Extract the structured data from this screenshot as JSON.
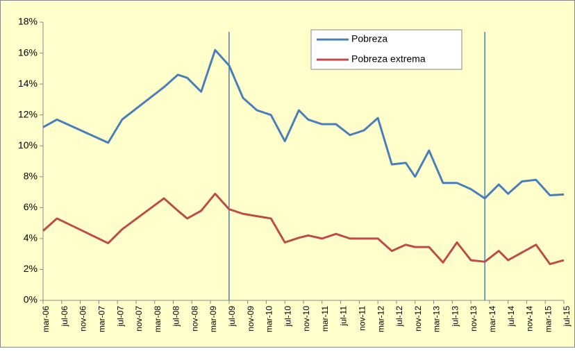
{
  "chart_data": {
    "type": "line",
    "x": [
      "2006-03",
      "2006-06",
      "2007-05",
      "2007-08",
      "2008-05",
      "2008-08",
      "2008-10",
      "2009-01",
      "2009-04",
      "2009-07",
      "2009-10",
      "2010-01",
      "2010-04",
      "2010-07",
      "2010-10",
      "2010-12",
      "2011-03",
      "2011-06",
      "2011-09",
      "2011-12",
      "2012-03",
      "2012-06",
      "2012-09",
      "2012-11",
      "2013-02",
      "2013-05",
      "2013-08",
      "2013-11",
      "2014-02",
      "2014-05",
      "2014-07",
      "2014-10",
      "2015-01",
      "2015-04",
      "2015-07"
    ],
    "series": [
      {
        "name": "Pobreza",
        "color": "#4a7ebb",
        "values": [
          11.2,
          11.7,
          10.2,
          11.7,
          13.8,
          14.6,
          14.4,
          13.5,
          16.2,
          15.2,
          13.1,
          12.3,
          12.0,
          10.3,
          12.3,
          11.7,
          11.4,
          11.4,
          10.7,
          11.0,
          11.8,
          8.8,
          8.9,
          8.0,
          9.7,
          7.6,
          7.6,
          7.2,
          6.6,
          7.5,
          6.9,
          7.7,
          7.8,
          6.8,
          6.85
        ]
      },
      {
        "name": "Pobreza extrema",
        "color": "#be4b48",
        "values": [
          4.5,
          5.3,
          3.7,
          4.6,
          6.6,
          5.8,
          5.3,
          5.8,
          6.9,
          5.9,
          5.6,
          5.45,
          5.3,
          3.75,
          4.05,
          4.2,
          4.0,
          4.3,
          4.0,
          4.0,
          4.0,
          3.2,
          3.6,
          3.45,
          3.45,
          2.45,
          3.75,
          2.6,
          2.5,
          3.2,
          2.6,
          3.1,
          3.6,
          2.35,
          2.6
        ]
      }
    ],
    "reference_lines": [
      "2009-07",
      "2014-02"
    ],
    "xlim": [
      "2006-03",
      "2015-07"
    ],
    "xticks": [
      {
        "value": "2006-03",
        "label": "mar-06"
      },
      {
        "value": "2006-07",
        "label": "jul-06"
      },
      {
        "value": "2006-11",
        "label": "nov-06"
      },
      {
        "value": "2007-03",
        "label": "mar-07"
      },
      {
        "value": "2007-07",
        "label": "jul-07"
      },
      {
        "value": "2007-11",
        "label": "nov-07"
      },
      {
        "value": "2008-03",
        "label": "mar-08"
      },
      {
        "value": "2008-07",
        "label": "jul-08"
      },
      {
        "value": "2008-11",
        "label": "nov-08"
      },
      {
        "value": "2009-03",
        "label": "mar-09"
      },
      {
        "value": "2009-07",
        "label": "jul-09"
      },
      {
        "value": "2009-11",
        "label": "nov-09"
      },
      {
        "value": "2010-03",
        "label": "mar-10"
      },
      {
        "value": "2010-07",
        "label": "jul-10"
      },
      {
        "value": "2010-11",
        "label": "nov-10"
      },
      {
        "value": "2011-03",
        "label": "mar-11"
      },
      {
        "value": "2011-07",
        "label": "jul-11"
      },
      {
        "value": "2011-11",
        "label": "nov-11"
      },
      {
        "value": "2012-03",
        "label": "mar-12"
      },
      {
        "value": "2012-07",
        "label": "jul-12"
      },
      {
        "value": "2012-11",
        "label": "nov-12"
      },
      {
        "value": "2013-03",
        "label": "mar-13"
      },
      {
        "value": "2013-07",
        "label": "jul-13"
      },
      {
        "value": "2013-11",
        "label": "nov-13"
      },
      {
        "value": "2014-03",
        "label": "mar-14"
      },
      {
        "value": "2014-07",
        "label": "jul-14"
      },
      {
        "value": "2014-11",
        "label": "nov-14"
      },
      {
        "value": "2015-03",
        "label": "mar-15"
      },
      {
        "value": "2015-07",
        "label": "jul-15"
      }
    ],
    "ylim": [
      0,
      18
    ],
    "yticks": [
      {
        "value": 0,
        "label": "0%"
      },
      {
        "value": 2,
        "label": "2%"
      },
      {
        "value": 4,
        "label": "4%"
      },
      {
        "value": 6,
        "label": "6%"
      },
      {
        "value": 8,
        "label": "8%"
      },
      {
        "value": 10,
        "label": "10%"
      },
      {
        "value": 12,
        "label": "12%"
      },
      {
        "value": 14,
        "label": "14%"
      },
      {
        "value": 16,
        "label": "16%"
      },
      {
        "value": 18,
        "label": "18%"
      }
    ],
    "grid": false,
    "legend": "top"
  }
}
